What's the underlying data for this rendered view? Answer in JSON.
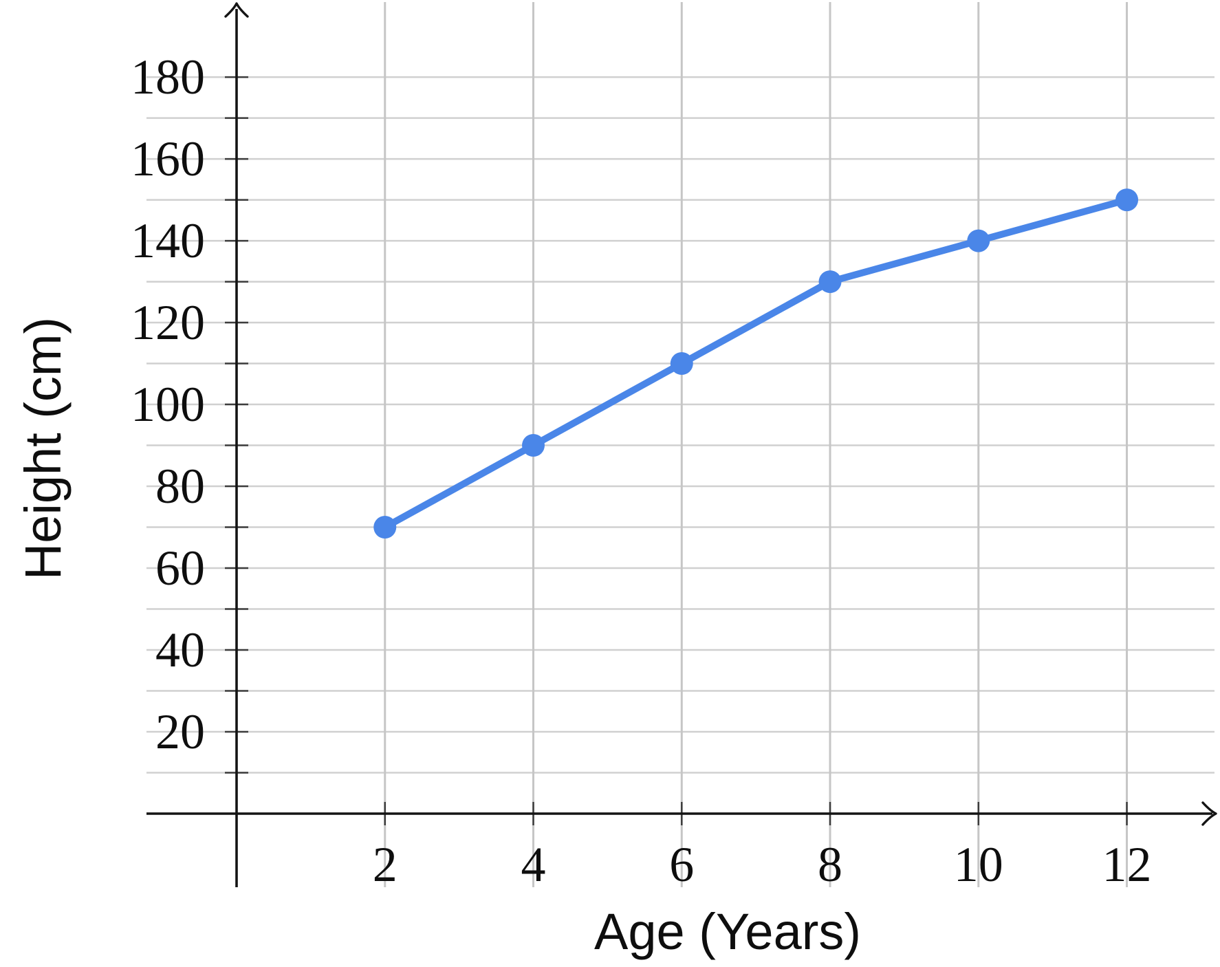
{
  "figure": {
    "background": "#ffffff"
  },
  "chart_data": {
    "type": "line",
    "title": "",
    "xlabel": "Age (Years)",
    "ylabel": "Height (cm)",
    "x": [
      2,
      4,
      6,
      8,
      10,
      12
    ],
    "series": [
      {
        "name": "Height",
        "values": [
          70,
          90,
          110,
          130,
          140,
          150
        ]
      }
    ],
    "x_tick_labels": [
      "2",
      "4",
      "6",
      "8",
      "10",
      "12"
    ],
    "y_tick_values": [
      20,
      40,
      60,
      80,
      100,
      120,
      140,
      160,
      180
    ],
    "y_tick_labels": [
      "20",
      "40",
      "60",
      "80",
      "100",
      "120",
      "140",
      "160",
      "180"
    ],
    "x_gridline_values": [
      2,
      4,
      6,
      8,
      10,
      12
    ],
    "y_gridline_step": 10,
    "y_gridline_max": 180,
    "xlim": [
      0,
      13.2
    ],
    "ylim": [
      0,
      198
    ],
    "grid": true,
    "legend": false,
    "line_color": "#4a86e8",
    "marker": "circle",
    "marker_color": "#4a86e8",
    "axis_color": "#141414",
    "gridline_color": "#cccccc",
    "tick_color": "#3d3d3d"
  }
}
